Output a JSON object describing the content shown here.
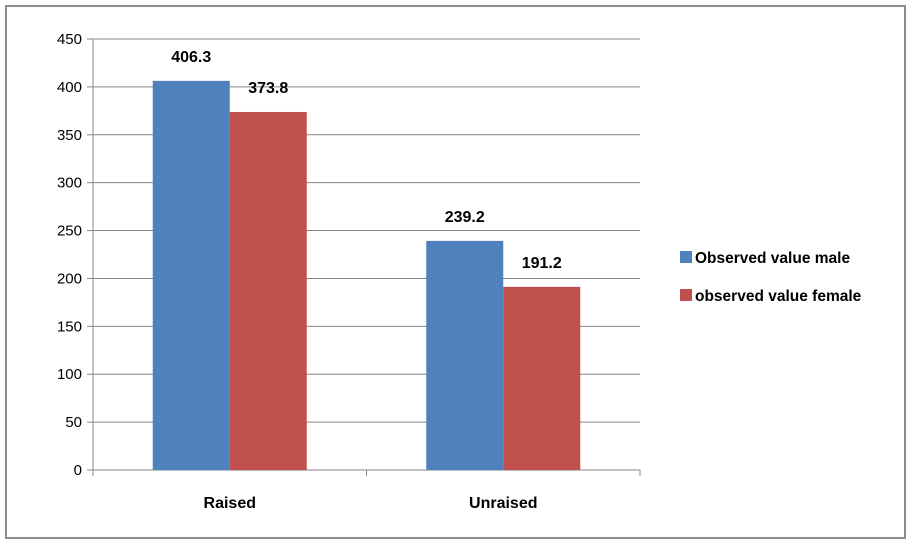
{
  "chart_data": {
    "type": "bar",
    "categories": [
      "Raised",
      "Unraised"
    ],
    "series": [
      {
        "name": "Observed value male",
        "values": [
          406.3,
          239.2
        ],
        "color": "#4F81BD"
      },
      {
        "name": "observed value female",
        "values": [
          373.8,
          191.2
        ],
        "color": "#C0504D"
      }
    ],
    "value_labels": [
      [
        "406.3",
        "239.2"
      ],
      [
        "373.8",
        "191.2"
      ]
    ],
    "ylim": [
      0,
      450
    ],
    "yticks": [
      0,
      50,
      100,
      150,
      200,
      250,
      300,
      350,
      400,
      450
    ],
    "grid": true,
    "legend_position": "right",
    "title": "",
    "xlabel": "",
    "ylabel": ""
  }
}
